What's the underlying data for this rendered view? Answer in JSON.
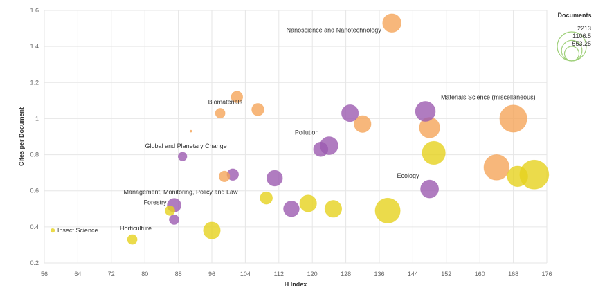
{
  "chart_data": {
    "type": "scatter",
    "xlabel": "H Index",
    "ylabel": "Cites per Document",
    "xlim": [
      56,
      176
    ],
    "ylim": [
      0.2,
      1.6
    ],
    "x_ticks": [
      56,
      64,
      72,
      80,
      88,
      96,
      104,
      112,
      120,
      128,
      136,
      144,
      152,
      160,
      168,
      176
    ],
    "y_ticks": [
      0.2,
      0.4,
      0.6,
      0.8,
      1,
      1.2,
      1.4,
      1.6
    ],
    "grid": true,
    "size_legend": {
      "title": "Documents",
      "placement": "top-right",
      "values": [
        2213,
        1106.5,
        553.25
      ]
    },
    "colors": {
      "orange": "#f5a55a",
      "purple": "#9c5bb0",
      "yellow": "#e6d21e",
      "legend": "#9fd07a"
    },
    "points": [
      {
        "x": 139,
        "y": 1.53,
        "size": 900,
        "color": "orange",
        "label": "Nanoscience and Nanotechnology"
      },
      {
        "x": 168,
        "y": 1.0,
        "size": 1950,
        "color": "orange",
        "label": "Materials Science (miscellaneous)"
      },
      {
        "x": 98,
        "y": 1.03,
        "size": 250,
        "color": "orange",
        "label": "Biomaterials"
      },
      {
        "x": 102,
        "y": 1.12,
        "size": 350,
        "color": "orange",
        "label": ""
      },
      {
        "x": 107,
        "y": 1.05,
        "size": 400,
        "color": "orange",
        "label": ""
      },
      {
        "x": 91,
        "y": 0.93,
        "size": 10,
        "color": "orange",
        "label": ""
      },
      {
        "x": 132,
        "y": 0.97,
        "size": 750,
        "color": "orange",
        "label": ""
      },
      {
        "x": 148,
        "y": 0.95,
        "size": 1100,
        "color": "orange",
        "label": ""
      },
      {
        "x": 164,
        "y": 0.73,
        "size": 1700,
        "color": "orange",
        "label": ""
      },
      {
        "x": 99,
        "y": 0.68,
        "size": 300,
        "color": "orange",
        "label": ""
      },
      {
        "x": 129,
        "y": 1.03,
        "size": 750,
        "color": "purple",
        "label": ""
      },
      {
        "x": 147,
        "y": 1.04,
        "size": 1050,
        "color": "purple",
        "label": ""
      },
      {
        "x": 124,
        "y": 0.85,
        "size": 850,
        "color": "purple",
        "label": "Pollution"
      },
      {
        "x": 122,
        "y": 0.83,
        "size": 550,
        "color": "purple",
        "label": ""
      },
      {
        "x": 89,
        "y": 0.79,
        "size": 200,
        "color": "purple",
        "label": "Global and Planetary Change"
      },
      {
        "x": 101,
        "y": 0.69,
        "size": 350,
        "color": "purple",
        "label": ""
      },
      {
        "x": 111,
        "y": 0.67,
        "size": 650,
        "color": "purple",
        "label": ""
      },
      {
        "x": 148,
        "y": 0.61,
        "size": 850,
        "color": "purple",
        "label": "Ecology"
      },
      {
        "x": 87,
        "y": 0.52,
        "size": 500,
        "color": "purple",
        "label": "Management, Monitoring, Policy and Law"
      },
      {
        "x": 115,
        "y": 0.5,
        "size": 650,
        "color": "purple",
        "label": ""
      },
      {
        "x": 87,
        "y": 0.44,
        "size": 250,
        "color": "purple",
        "label": ""
      },
      {
        "x": 149,
        "y": 0.81,
        "size": 1400,
        "color": "yellow",
        "label": ""
      },
      {
        "x": 169,
        "y": 0.68,
        "size": 1100,
        "color": "yellow",
        "label": ""
      },
      {
        "x": 173,
        "y": 0.69,
        "size": 2213,
        "color": "yellow",
        "label": ""
      },
      {
        "x": 109,
        "y": 0.56,
        "size": 400,
        "color": "yellow",
        "label": ""
      },
      {
        "x": 119,
        "y": 0.53,
        "size": 750,
        "color": "yellow",
        "label": ""
      },
      {
        "x": 125,
        "y": 0.5,
        "size": 750,
        "color": "yellow",
        "label": ""
      },
      {
        "x": 138,
        "y": 0.49,
        "size": 1650,
        "color": "yellow",
        "label": ""
      },
      {
        "x": 86,
        "y": 0.49,
        "size": 250,
        "color": "yellow",
        "label": "Forestry"
      },
      {
        "x": 96,
        "y": 0.38,
        "size": 750,
        "color": "yellow",
        "label": ""
      },
      {
        "x": 77,
        "y": 0.33,
        "size": 250,
        "color": "yellow",
        "label": "Horticulture"
      },
      {
        "x": 58,
        "y": 0.38,
        "size": 40,
        "color": "yellow",
        "label": "Insect Science"
      }
    ]
  }
}
